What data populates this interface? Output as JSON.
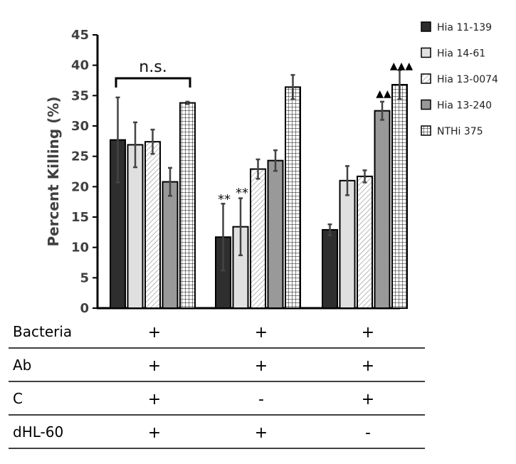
{
  "chart_data": {
    "type": "bar",
    "ylabel": "Percent Killing (%)",
    "ylim": [
      0,
      45
    ],
    "yticks": [
      "0",
      "5",
      "10",
      "15",
      "20",
      "25",
      "30",
      "35",
      "40",
      "45"
    ],
    "grid": false,
    "legend_position": "right",
    "groups": 3,
    "series": [
      {
        "name": "Hia 11-139",
        "color": "#2e2e2e",
        "pattern": "solid",
        "values": [
          27.7,
          11.7,
          12.9
        ],
        "errors": [
          7.0,
          5.5,
          0.9
        ]
      },
      {
        "name": "Hia 14-61",
        "color": "#e0e0e0",
        "pattern": "solid",
        "values": [
          26.9,
          13.4,
          21.0
        ],
        "errors": [
          3.7,
          4.7,
          2.4
        ]
      },
      {
        "name": "Hia 13-0074",
        "color": "#ffffff",
        "pattern": "diagonal",
        "values": [
          27.4,
          22.9,
          21.7
        ],
        "errors": [
          2.0,
          1.6,
          1.0
        ]
      },
      {
        "name": "Hia 13-240",
        "color": "#999999",
        "pattern": "solid",
        "values": [
          20.8,
          24.3,
          32.5
        ],
        "errors": [
          2.3,
          1.7,
          1.5
        ]
      },
      {
        "name": "NTHi 375",
        "color": "#ffffff",
        "pattern": "grid",
        "values": [
          33.8,
          36.4,
          36.8
        ],
        "errors": [
          0.2,
          2.0,
          2.4
        ]
      }
    ],
    "annotations": {
      "ns": "n.s.",
      "star": "**",
      "tri2": "▲▲",
      "tri3": "▲▲▲"
    },
    "conditions": [
      {
        "label": "Bacteria",
        "values": [
          "+",
          "+",
          "+"
        ]
      },
      {
        "label": "Ab",
        "values": [
          "+",
          "+",
          "+"
        ]
      },
      {
        "label": "C",
        "values": [
          "+",
          "-",
          "+"
        ]
      },
      {
        "label": "dHL-60",
        "values": [
          "+",
          "+",
          "-"
        ]
      }
    ]
  }
}
